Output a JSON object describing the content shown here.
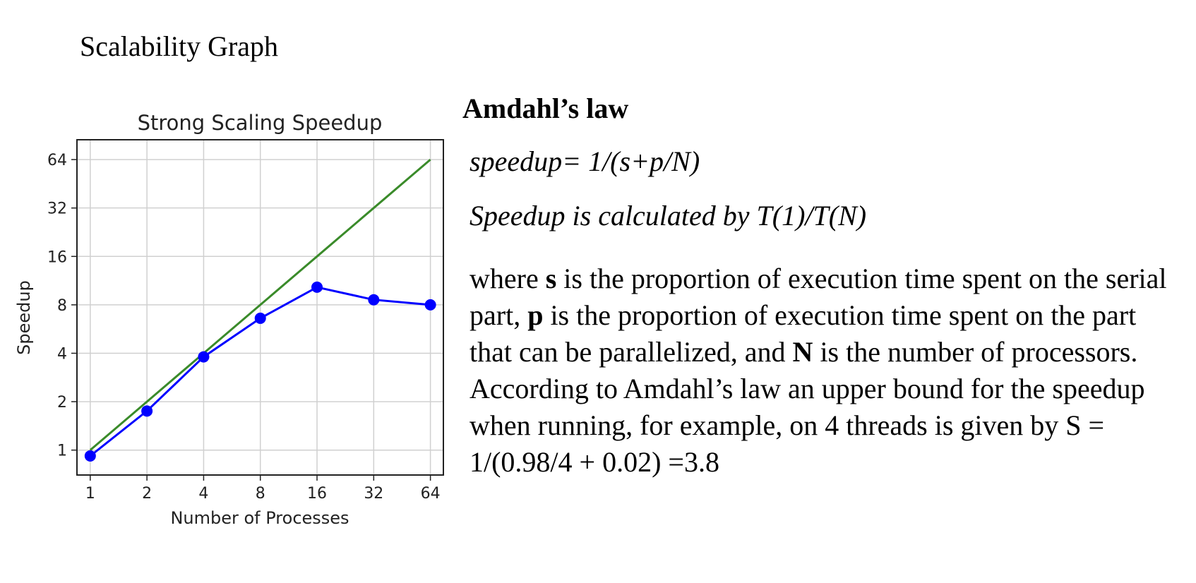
{
  "page": {
    "heading": "Scalability Graph"
  },
  "chart_data": {
    "type": "line",
    "title": "Strong Scaling Speedup",
    "xlabel": "Number of Processes",
    "ylabel": "Speedup",
    "x_scale": "log2",
    "y_scale": "log2",
    "x": [
      1,
      2,
      4,
      8,
      16,
      32,
      64
    ],
    "x_tick_labels": [
      "1",
      "2",
      "4",
      "8",
      "16",
      "32",
      "64"
    ],
    "y_ticks": [
      1,
      2,
      4,
      8,
      16,
      32,
      64
    ],
    "y_tick_labels": [
      "1",
      "2",
      "4",
      "8",
      "16",
      "32",
      "64"
    ],
    "xlim": [
      0.85,
      75
    ],
    "ylim": [
      0.7,
      85
    ],
    "grid": true,
    "legend": "none",
    "series": [
      {
        "values": [
          1,
          2,
          4,
          8,
          16,
          32,
          64
        ],
        "color": "#3a8b2a",
        "markers": false
      },
      {
        "values": [
          0.92,
          1.75,
          3.8,
          6.6,
          10.3,
          8.6,
          8.0
        ],
        "color": "#0000ff",
        "markers": true
      }
    ]
  },
  "law": {
    "title": "Amdahl’s law",
    "formula": "speedup= 1/(s+p/N)",
    "speedup_definition": "Speedup is calculated by T(1)/T(N)",
    "explanation": {
      "t1": "where ",
      "s": "s",
      "t2": " is the proportion of execution time spent on the serial part, ",
      "p": "p",
      "t3": " is the proportion of execution time spent on the part that can be parallelized, and ",
      "n": "N",
      "t4": " is the number of processors. According to Amdahl’s law an upper bound for the speedup when running, for example, on 4 threads is given by S = 1/(0.98/4 + 0.02) =3.8"
    }
  }
}
